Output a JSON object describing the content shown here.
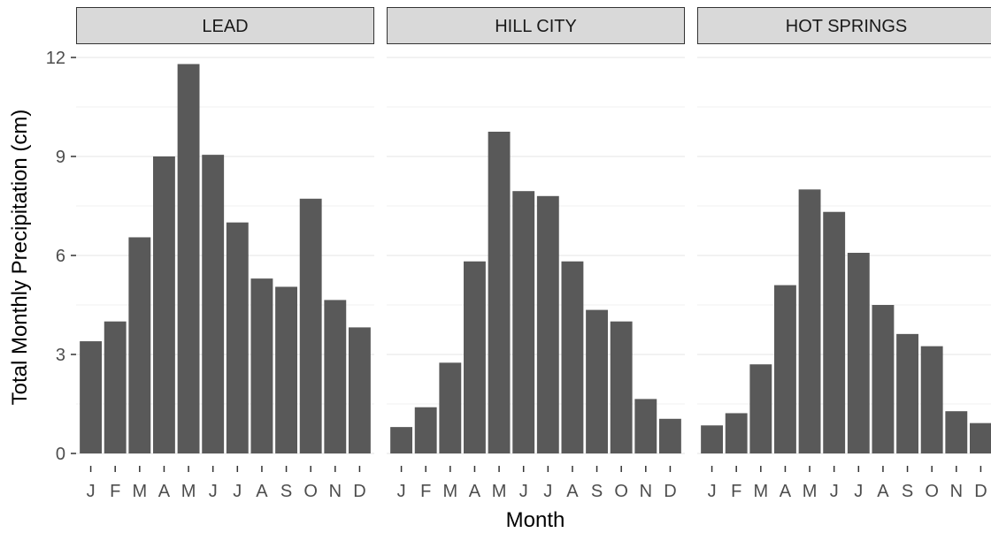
{
  "chart_data": {
    "type": "bar",
    "xlabel": "Month",
    "ylabel": "Total Monthly Precipitation (cm)",
    "ylim": [
      0,
      12
    ],
    "yticks": [
      0,
      3,
      6,
      9,
      12
    ],
    "grid": true,
    "categories": [
      "J",
      "F",
      "M",
      "A",
      "M",
      "J",
      "J",
      "A",
      "S",
      "O",
      "N",
      "D"
    ],
    "panels": [
      {
        "name": "LEAD",
        "values": [
          3.4,
          4.0,
          6.55,
          9.0,
          11.8,
          9.05,
          7.0,
          5.3,
          5.05,
          7.72,
          4.65,
          3.82
        ]
      },
      {
        "name": "HILL CITY",
        "values": [
          0.8,
          1.4,
          2.75,
          5.82,
          9.75,
          7.95,
          7.8,
          5.82,
          4.35,
          4.0,
          1.65,
          1.05
        ]
      },
      {
        "name": "HOT SPRINGS",
        "values": [
          0.85,
          1.22,
          2.7,
          5.1,
          8.0,
          7.32,
          6.08,
          4.5,
          3.62,
          3.25,
          1.28,
          0.92
        ]
      }
    ],
    "colors": {
      "bar": "#595959",
      "strip_fill": "#d9d9d9",
      "strip_border": "#333333",
      "grid_major": "#ebebeb",
      "grid_minor": "#f2f2f2",
      "tick": "#333333"
    }
  }
}
